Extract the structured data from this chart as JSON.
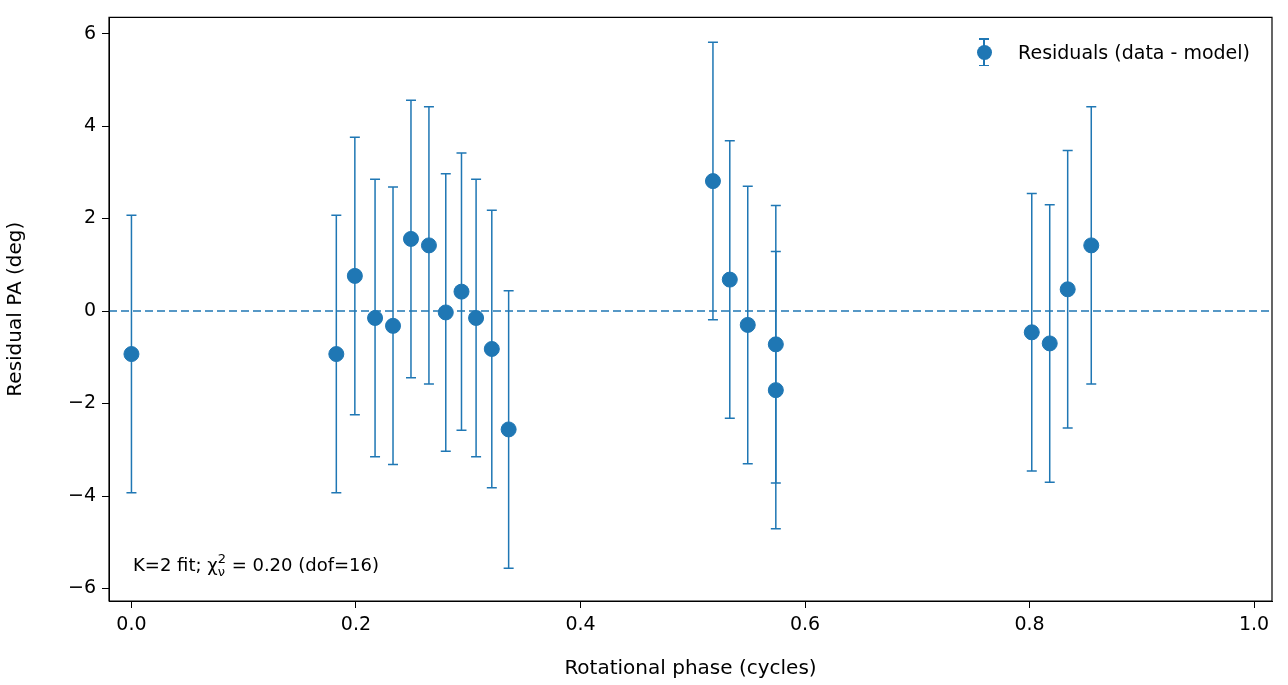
{
  "chart_data": {
    "type": "scatter",
    "xlabel": "Rotational phase (cycles)",
    "ylabel": "Residual PA (deg)",
    "x": [
      0.0,
      0.1825,
      0.199,
      0.217,
      0.233,
      0.249,
      0.265,
      0.28,
      0.294,
      0.307,
      0.321,
      0.336,
      0.518,
      0.533,
      0.549,
      0.574,
      0.574,
      0.802,
      0.818,
      0.834,
      0.855
    ],
    "series": [
      {
        "name": "Residuals (data - model)",
        "color": "#1f77b4",
        "values": [
          -0.93,
          -0.93,
          0.76,
          -0.15,
          -0.32,
          1.56,
          1.42,
          -0.03,
          0.42,
          -0.15,
          -0.82,
          -2.56,
          2.81,
          0.68,
          -0.3,
          -0.72,
          -1.71,
          -0.46,
          -0.7,
          0.47,
          1.42
        ],
        "errors": [
          3,
          3,
          3,
          3,
          3,
          3,
          3,
          3,
          3,
          3,
          3,
          3,
          3,
          3,
          3,
          3,
          3,
          3,
          3,
          3,
          3
        ]
      }
    ],
    "xlim": [
      -0.02,
      1.016
    ],
    "ylim": [
      -6.27,
      6.35
    ],
    "xticks": [
      {
        "value": 0,
        "label": "0.0"
      },
      {
        "value": 0.2,
        "label": "0.2"
      },
      {
        "value": 0.4,
        "label": "0.4"
      },
      {
        "value": 0.6,
        "label": "0.6"
      },
      {
        "value": 0.8,
        "label": "0.8"
      },
      {
        "value": 1,
        "label": "1.0"
      }
    ],
    "yticks": [
      {
        "value": -6,
        "label": "−6"
      },
      {
        "value": -4,
        "label": "−4"
      },
      {
        "value": -2,
        "label": "−2"
      },
      0,
      2,
      4,
      6
    ],
    "ref_lines": [
      {
        "axis": "y",
        "value": 0,
        "color": "#1f77b4",
        "line_style": "dashed"
      }
    ],
    "annotations": [
      "K=2 fit; χ$^{2}$$_{ν}$ = 0.20 (dof=16)"
    ],
    "marker": "circle",
    "grid": false,
    "legend": "top right"
  }
}
